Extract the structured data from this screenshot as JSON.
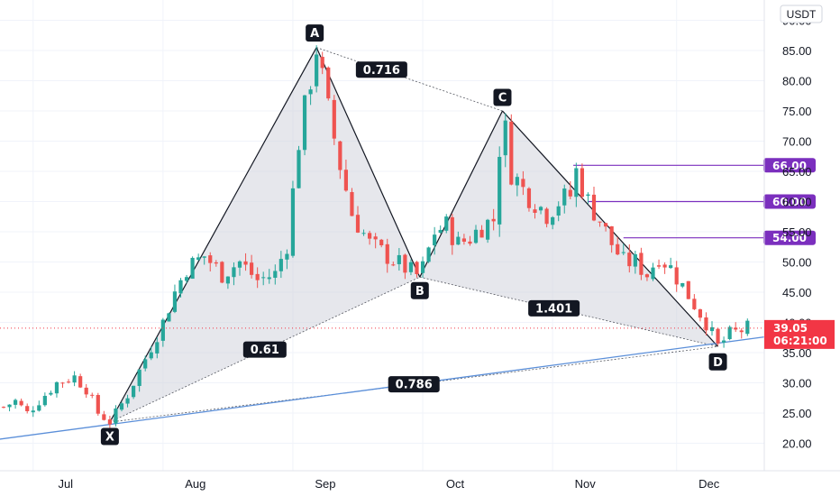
{
  "chart_data": {
    "type": "candlestick",
    "currency": "USDT",
    "price_ticks": [
      "90.00",
      "85.00",
      "80.00",
      "75.00",
      "70.00",
      "65.00",
      "60.00",
      "55.00",
      "50.00",
      "45.00",
      "40.00",
      "35.00",
      "30.00",
      "25.00",
      "20.00"
    ],
    "time_ticks": [
      "Jul",
      "Aug",
      "Sep",
      "Oct",
      "Nov",
      "Dec"
    ],
    "ylim": [
      15,
      93
    ],
    "current_price": {
      "value": "39.05",
      "countdown": "06:21:00",
      "level": 39.05
    },
    "pattern_points": [
      {
        "label": "X",
        "x": 18.0,
        "price": 23.5
      },
      {
        "label": "A",
        "x": 53.0,
        "price": 85.5
      },
      {
        "label": "B",
        "x": 70.5,
        "price": 47.5
      },
      {
        "label": "C",
        "x": 84.5,
        "price": 75.0
      },
      {
        "label": "D",
        "x": 121.0,
        "price": 36.0
      }
    ],
    "ratios": [
      {
        "value": "0.716",
        "between": "A-C"
      },
      {
        "value": "0.61",
        "between": "X-B"
      },
      {
        "value": "1.401",
        "between": "B-D"
      },
      {
        "value": "0.786",
        "between": "X-D"
      }
    ],
    "targets": [
      {
        "label": "66.00",
        "level": 66.0,
        "from_x": 96.5
      },
      {
        "label": "60.00",
        "level": 60.0,
        "from_x": 99.0
      },
      {
        "label": "54.00",
        "level": 54.0,
        "from_x": 105.0
      }
    ],
    "trendline": {
      "from": {
        "x": -2,
        "price": 20.5
      },
      "to": {
        "x": 132,
        "price": 38.0
      }
    },
    "candles": {
      "count": 127,
      "month_start_index": {
        "Jul": 5,
        "Aug": 27,
        "Sep": 49,
        "Oct": 71,
        "Nov": 93,
        "Dec": 114
      },
      "anchors": [
        [
          0,
          26
        ],
        [
          2,
          27
        ],
        [
          4,
          25
        ],
        [
          7,
          28
        ],
        [
          9,
          30
        ],
        [
          12,
          31
        ],
        [
          14,
          29
        ],
        [
          16,
          25
        ],
        [
          18,
          23.5
        ],
        [
          21,
          28
        ],
        [
          24,
          34
        ],
        [
          27,
          40
        ],
        [
          29,
          45
        ],
        [
          31,
          49
        ],
        [
          34,
          51
        ],
        [
          37,
          48
        ],
        [
          40,
          50
        ],
        [
          43,
          47
        ],
        [
          46,
          48
        ],
        [
          48,
          53
        ],
        [
          50,
          70
        ],
        [
          53,
          85.5
        ],
        [
          55,
          75
        ],
        [
          57,
          66
        ],
        [
          59,
          58
        ],
        [
          62,
          53
        ],
        [
          65,
          51
        ],
        [
          68,
          49
        ],
        [
          70.5,
          47.5
        ],
        [
          73,
          55
        ],
        [
          75,
          56
        ],
        [
          77,
          53
        ],
        [
          79,
          54
        ],
        [
          81,
          56
        ],
        [
          83,
          57
        ],
        [
          84.5,
          75
        ],
        [
          86,
          65
        ],
        [
          88,
          62
        ],
        [
          90,
          60
        ],
        [
          92,
          58
        ],
        [
          94,
          60
        ],
        [
          96,
          61
        ],
        [
          97,
          65
        ],
        [
          99,
          60
        ],
        [
          101,
          57
        ],
        [
          103,
          53
        ],
        [
          105,
          50
        ],
        [
          107,
          50
        ],
        [
          109,
          48
        ],
        [
          111,
          51
        ],
        [
          113,
          49
        ],
        [
          115,
          46
        ],
        [
          117,
          43
        ],
        [
          119,
          40
        ],
        [
          121,
          36
        ],
        [
          123,
          38
        ],
        [
          126,
          39.05
        ]
      ]
    },
    "colors": {
      "up": "#26a69a",
      "down": "#ef5350",
      "pattern_fill": "#d1d4dc",
      "pattern_line": "#131722",
      "trendline": "#5b8fd9",
      "target": "#7b2fbe",
      "label_bg": "#131722",
      "price_label": "#f23645"
    }
  }
}
